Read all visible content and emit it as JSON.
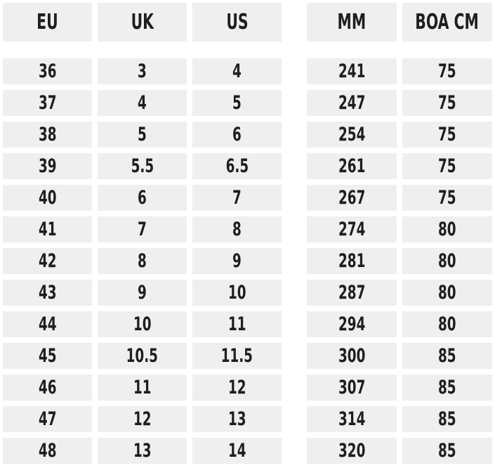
{
  "table": {
    "headers": [
      "EU",
      "UK",
      "US",
      "MM",
      "BOA CM"
    ],
    "rows": [
      [
        "36",
        "3",
        "4",
        "241",
        "75"
      ],
      [
        "37",
        "4",
        "5",
        "247",
        "75"
      ],
      [
        "38",
        "5",
        "6",
        "254",
        "75"
      ],
      [
        "39",
        "5.5",
        "6.5",
        "261",
        "75"
      ],
      [
        "40",
        "6",
        "7",
        "267",
        "75"
      ],
      [
        "41",
        "7",
        "8",
        "274",
        "80"
      ],
      [
        "42",
        "8",
        "9",
        "281",
        "80"
      ],
      [
        "43",
        "9",
        "10",
        "287",
        "80"
      ],
      [
        "44",
        "10",
        "11",
        "294",
        "80"
      ],
      [
        "45",
        "10.5",
        "11.5",
        "300",
        "85"
      ],
      [
        "46",
        "11",
        "12",
        "307",
        "85"
      ],
      [
        "47",
        "12",
        "13",
        "314",
        "85"
      ],
      [
        "48",
        "13",
        "14",
        "320",
        "85"
      ]
    ]
  }
}
